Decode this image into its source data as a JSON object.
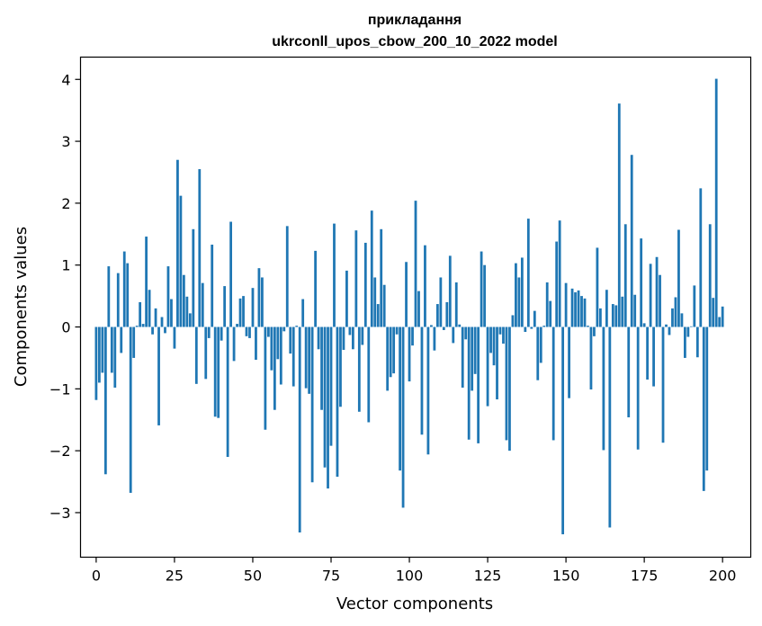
{
  "chart_data": {
    "type": "bar",
    "title": "прикладання",
    "subtitle": "ukrconll_upos_cbow_200_10_2022 model",
    "xlabel": "Vector components",
    "ylabel": "Components values",
    "xlim": [
      -5,
      209
    ],
    "ylim": [
      -3.72,
      4.36
    ],
    "xticks": [
      0,
      25,
      50,
      75,
      100,
      125,
      150,
      175,
      200
    ],
    "yticks": [
      -3,
      -2,
      -1,
      0,
      1,
      2,
      3,
      4
    ],
    "ytick_labels": [
      "−3",
      "−2",
      "−1",
      "0",
      "1",
      "2",
      "3",
      "4"
    ],
    "grid": false,
    "bar_color": "#1f77b4",
    "values": [
      -1.18,
      -0.9,
      -0.74,
      -2.38,
      0.98,
      -0.74,
      -0.98,
      0.87,
      -0.42,
      1.22,
      1.03,
      -2.68,
      -0.5,
      0.02,
      0.4,
      0.05,
      1.46,
      0.6,
      -0.12,
      0.3,
      -1.59,
      0.16,
      -0.1,
      0.98,
      0.45,
      -0.35,
      2.7,
      2.12,
      0.84,
      0.49,
      0.22,
      1.58,
      -0.92,
      2.55,
      0.71,
      -0.84,
      -0.18,
      1.33,
      -1.45,
      -1.47,
      -0.22,
      0.66,
      -2.1,
      1.7,
      -0.55,
      0.05,
      0.46,
      0.5,
      -0.15,
      -0.18,
      0.63,
      -0.53,
      0.95,
      0.8,
      -1.66,
      -0.16,
      -0.7,
      -1.34,
      -0.52,
      -0.93,
      -0.07,
      1.63,
      -0.43,
      -0.96,
      0.02,
      -3.32,
      0.45,
      -0.99,
      -1.08,
      -2.51,
      1.23,
      -0.36,
      -1.34,
      -2.27,
      -2.61,
      -1.92,
      1.67,
      -2.42,
      -1.29,
      -0.37,
      0.91,
      -0.13,
      -0.36,
      1.56,
      -1.37,
      -0.29,
      1.36,
      -1.54,
      1.88,
      0.8,
      0.37,
      1.58,
      0.68,
      -1.03,
      -0.81,
      -0.75,
      -0.12,
      -2.32,
      -2.92,
      1.05,
      -0.88,
      -0.3,
      2.04,
      0.58,
      -1.74,
      1.32,
      -2.06,
      0.03,
      -0.38,
      0.37,
      0.8,
      -0.05,
      0.4,
      1.15,
      -0.26,
      0.72,
      0.04,
      -0.98,
      -0.2,
      -1.82,
      -1.03,
      -0.76,
      -1.88,
      1.22,
      1.0,
      -1.28,
      -0.42,
      -0.62,
      -1.17,
      -0.12,
      -0.27,
      -1.83,
      -2.0,
      0.19,
      1.03,
      0.8,
      1.12,
      -0.08,
      1.75,
      -0.03,
      0.26,
      -0.86,
      -0.58,
      0.02,
      0.72,
      0.42,
      -1.83,
      1.38,
      1.72,
      -3.35,
      0.71,
      -1.15,
      0.62,
      0.56,
      0.59,
      0.5,
      0.46,
      0.02,
      -1.01,
      -0.15,
      1.28,
      0.3,
      -1.99,
      0.6,
      -3.24,
      0.37,
      0.35,
      3.61,
      0.49,
      1.66,
      -1.46,
      2.78,
      0.52,
      -1.98,
      1.43,
      0.06,
      -0.85,
      1.02,
      -0.96,
      1.13,
      0.84,
      -1.87,
      0.04,
      -0.13,
      0.3,
      0.48,
      1.57,
      0.22,
      -0.5,
      -0.16,
      0.01,
      0.67,
      -0.49,
      2.24,
      -2.65,
      -2.32,
      1.66,
      0.47,
      4.01,
      0.16,
      0.33
    ]
  }
}
